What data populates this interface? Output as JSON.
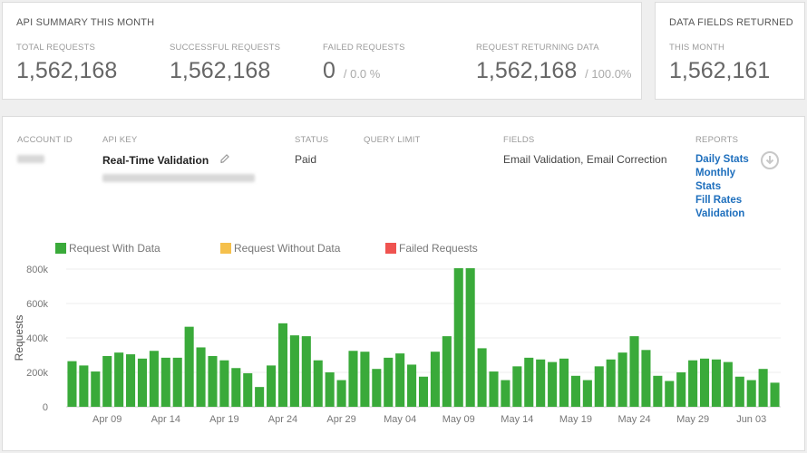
{
  "summary": {
    "title": "API SUMMARY THIS MONTH",
    "stats": [
      {
        "label": "TOTAL REQUESTS",
        "value": "1,562,168",
        "sub": ""
      },
      {
        "label": "SUCCESSFUL REQUESTS",
        "value": "1,562,168",
        "sub": ""
      },
      {
        "label": "FAILED REQUESTS",
        "value": "0",
        "sub": "/ 0.0 %"
      },
      {
        "label": "REQUEST RETURNING DATA",
        "value": "1,562,168",
        "sub": "/ 100.0%"
      }
    ]
  },
  "data_fields": {
    "title": "DATA FIELDS RETURNED",
    "label": "THIS MONTH",
    "value": "1,562,161"
  },
  "account": {
    "headers": {
      "account_id": "ACCOUNT ID",
      "api_key": "API KEY",
      "status": "STATUS",
      "query_limit": "QUERY LIMIT",
      "fields": "FIELDS",
      "reports": "REPORTS"
    },
    "api_key_name": "Real-Time Validation",
    "status": "Paid",
    "fields": "Email Validation, Email Correction",
    "reports": [
      "Daily Stats",
      "Monthly Stats",
      "Fill Rates",
      "Validation"
    ]
  },
  "legend": [
    {
      "label": "Request With Data",
      "color": "#3aaa3a"
    },
    {
      "label": "Request Without Data",
      "color": "#f5c04c"
    },
    {
      "label": "Failed Requests",
      "color": "#ef5350"
    }
  ],
  "chart_data": {
    "type": "bar",
    "ylabel": "Requests",
    "ylim": [
      0,
      800000
    ],
    "yticks": [
      "0",
      "200k",
      "400k",
      "600k",
      "800k"
    ],
    "ytick_values": [
      0,
      200000,
      400000,
      600000,
      800000
    ],
    "xtick_labels": [
      "Apr 09",
      "Apr 14",
      "Apr 19",
      "Apr 24",
      "Apr 29",
      "May 04",
      "May 09",
      "May 14",
      "May 19",
      "May 24",
      "May 29",
      "Jun 03"
    ],
    "xtick_indices": [
      3,
      8,
      13,
      18,
      23,
      28,
      33,
      38,
      43,
      48,
      53,
      58
    ],
    "series": [
      {
        "name": "Request With Data",
        "color": "#3aaa3a",
        "values": [
          265000,
          240000,
          205000,
          295000,
          315000,
          305000,
          280000,
          325000,
          285000,
          285000,
          465000,
          345000,
          295000,
          270000,
          225000,
          195000,
          115000,
          240000,
          485000,
          415000,
          410000,
          270000,
          200000,
          155000,
          325000,
          320000,
          220000,
          285000,
          310000,
          245000,
          175000,
          320000,
          410000,
          805000,
          805000,
          340000,
          205000,
          155000,
          235000,
          285000,
          275000,
          260000,
          280000,
          180000,
          155000,
          235000,
          275000,
          315000,
          410000,
          330000,
          180000,
          150000,
          200000,
          270000,
          280000,
          275000,
          260000,
          175000,
          155000,
          220000,
          140000
        ]
      }
    ]
  }
}
